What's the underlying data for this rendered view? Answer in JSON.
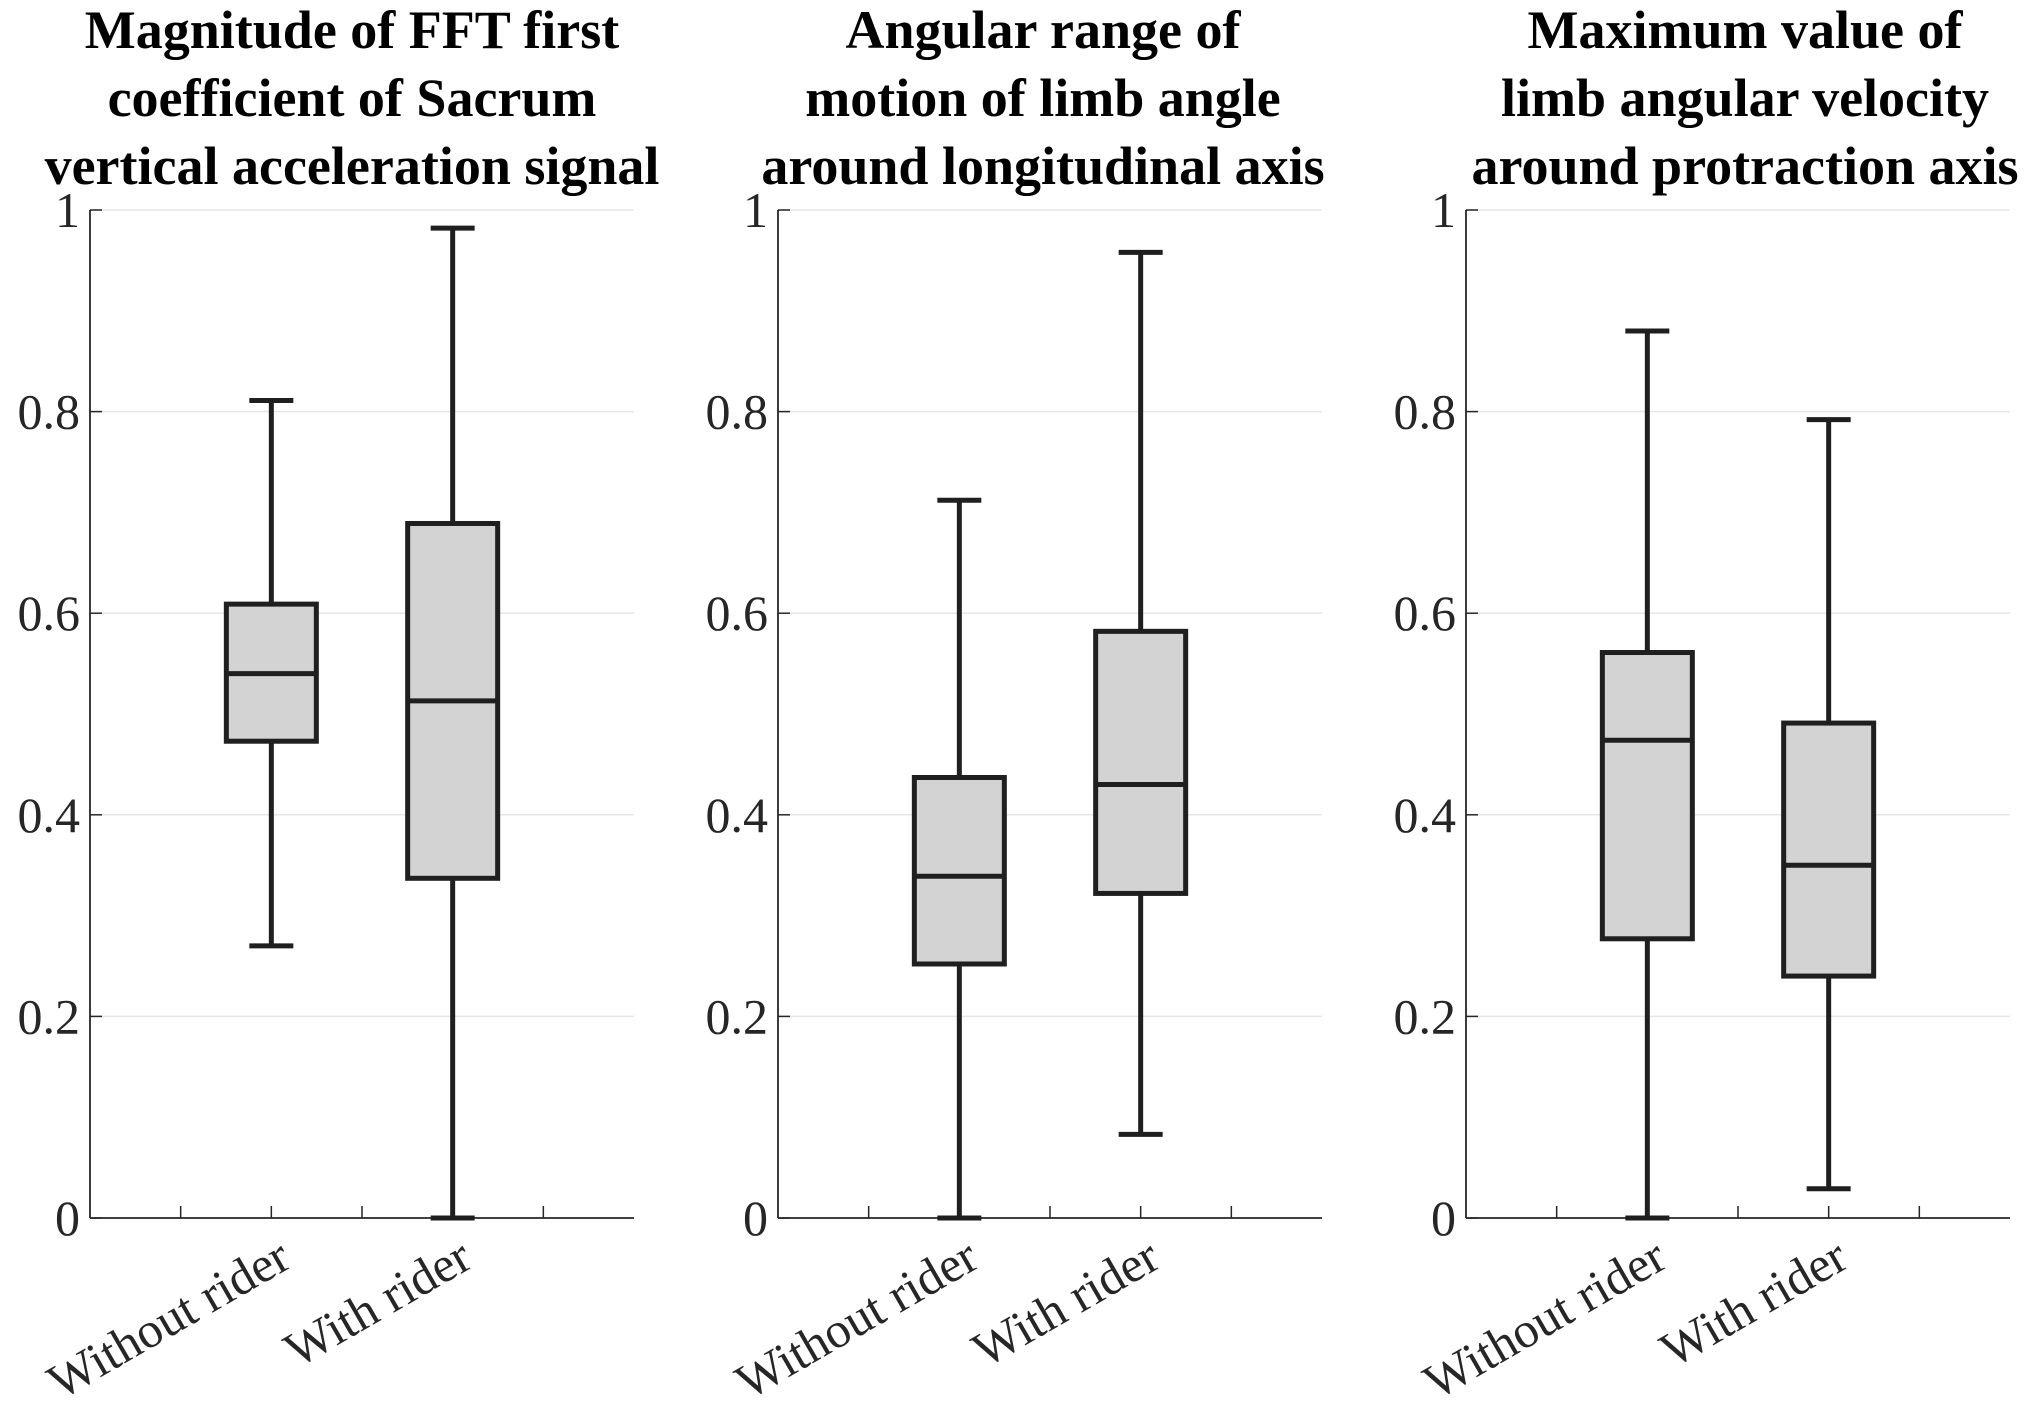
{
  "colors": {
    "box_fill": "#d3d3d3",
    "box_stroke": "#1f1f1f",
    "axis": "#262626",
    "grid": "#e6e6e6"
  },
  "chart_data": [
    {
      "type": "box",
      "title_lines": [
        "Magnitude of FFT first",
        "coefficient of Sacrum",
        "vertical acceleration signal"
      ],
      "ylim": [
        0,
        1
      ],
      "yticks": [
        "0",
        "0.2",
        "0.4",
        "0.6",
        "0.8",
        "1"
      ],
      "grid": true,
      "categories": [
        "Without rider",
        "With rider"
      ],
      "boxes": [
        {
          "whisker_low": 0.27,
          "q1": 0.473,
          "median": 0.54,
          "q3": 0.609,
          "whisker_high": 0.811
        },
        {
          "whisker_low": 0.0,
          "q1": 0.337,
          "median": 0.513,
          "q3": 0.689,
          "whisker_high": 0.982
        }
      ]
    },
    {
      "type": "box",
      "title_lines": [
        "Angular range of",
        "motion of limb angle",
        "around longitudinal axis"
      ],
      "ylim": [
        0,
        1
      ],
      "yticks": [
        "0",
        "0.2",
        "0.4",
        "0.6",
        "0.8",
        "1"
      ],
      "grid": true,
      "categories": [
        "Without rider",
        "With rider"
      ],
      "boxes": [
        {
          "whisker_low": 0.0,
          "q1": 0.252,
          "median": 0.339,
          "q3": 0.437,
          "whisker_high": 0.712
        },
        {
          "whisker_low": 0.083,
          "q1": 0.322,
          "median": 0.43,
          "q3": 0.582,
          "whisker_high": 0.958
        }
      ]
    },
    {
      "type": "box",
      "title_lines": [
        "Maximum value of",
        "limb angular velocity",
        "around protraction axis"
      ],
      "ylim": [
        0,
        1
      ],
      "yticks": [
        "0",
        "0.2",
        "0.4",
        "0.6",
        "0.8",
        "1"
      ],
      "grid": true,
      "categories": [
        "Without rider",
        "With rider"
      ],
      "boxes": [
        {
          "whisker_low": 0.0,
          "q1": 0.277,
          "median": 0.474,
          "q3": 0.561,
          "whisker_high": 0.88
        },
        {
          "whisker_low": 0.029,
          "q1": 0.24,
          "median": 0.35,
          "q3": 0.491,
          "whisker_high": 0.792
        }
      ]
    }
  ]
}
